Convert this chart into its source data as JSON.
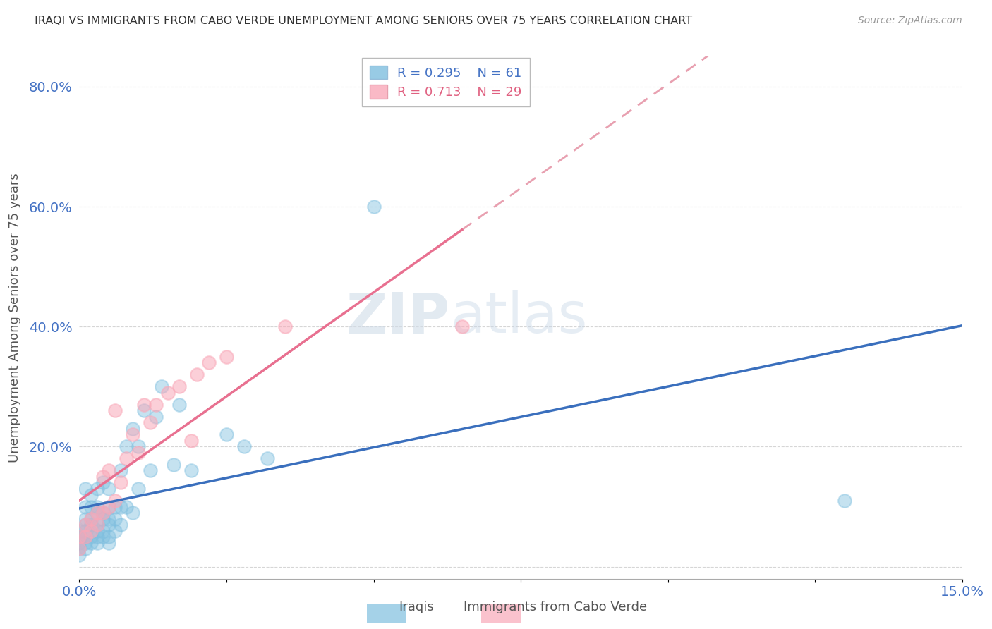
{
  "title": "IRAQI VS IMMIGRANTS FROM CABO VERDE UNEMPLOYMENT AMONG SENIORS OVER 75 YEARS CORRELATION CHART",
  "source": "Source: ZipAtlas.com",
  "ylabel": "Unemployment Among Seniors over 75 years",
  "xlim": [
    0.0,
    0.15
  ],
  "ylim": [
    -0.02,
    0.85
  ],
  "xticks": [
    0.0,
    0.025,
    0.05,
    0.075,
    0.1,
    0.125,
    0.15
  ],
  "xticklabels": [
    "0.0%",
    "",
    "",
    "",
    "",
    "",
    "15.0%"
  ],
  "yticks": [
    0.0,
    0.2,
    0.4,
    0.6,
    0.8
  ],
  "yticklabels": [
    "",
    "20.0%",
    "40.0%",
    "60.0%",
    "80.0%"
  ],
  "iraqis_R": 0.295,
  "iraqis_N": 61,
  "cabo_verde_R": 0.713,
  "cabo_verde_N": 29,
  "iraqis_color": "#7fbfdf",
  "cabo_verde_color": "#f9a8b8",
  "iraqis_line_color": "#3a6fbd",
  "cabo_verde_line_color": "#e87090",
  "cabo_verde_dash_color": "#e8a0b0",
  "background_color": "#ffffff",
  "watermark_zip": "ZIP",
  "watermark_atlas": "atlas",
  "iraqis_x": [
    0.0,
    0.0,
    0.0,
    0.0,
    0.0,
    0.001,
    0.001,
    0.001,
    0.001,
    0.001,
    0.001,
    0.001,
    0.001,
    0.002,
    0.002,
    0.002,
    0.002,
    0.002,
    0.002,
    0.003,
    0.003,
    0.003,
    0.003,
    0.003,
    0.003,
    0.003,
    0.004,
    0.004,
    0.004,
    0.004,
    0.004,
    0.005,
    0.005,
    0.005,
    0.005,
    0.005,
    0.005,
    0.006,
    0.006,
    0.006,
    0.007,
    0.007,
    0.007,
    0.008,
    0.008,
    0.009,
    0.009,
    0.01,
    0.01,
    0.011,
    0.012,
    0.013,
    0.014,
    0.016,
    0.017,
    0.019,
    0.025,
    0.028,
    0.032,
    0.05,
    0.13
  ],
  "iraqis_y": [
    0.02,
    0.03,
    0.04,
    0.05,
    0.06,
    0.03,
    0.04,
    0.05,
    0.06,
    0.07,
    0.08,
    0.1,
    0.13,
    0.04,
    0.05,
    0.07,
    0.08,
    0.1,
    0.12,
    0.04,
    0.05,
    0.06,
    0.07,
    0.09,
    0.1,
    0.13,
    0.05,
    0.06,
    0.08,
    0.09,
    0.14,
    0.04,
    0.05,
    0.07,
    0.08,
    0.1,
    0.13,
    0.06,
    0.08,
    0.1,
    0.07,
    0.1,
    0.16,
    0.1,
    0.2,
    0.09,
    0.23,
    0.13,
    0.2,
    0.26,
    0.16,
    0.25,
    0.3,
    0.17,
    0.27,
    0.16,
    0.22,
    0.2,
    0.18,
    0.6,
    0.11
  ],
  "cabo_verde_x": [
    0.0,
    0.0,
    0.001,
    0.001,
    0.002,
    0.002,
    0.003,
    0.003,
    0.004,
    0.004,
    0.005,
    0.005,
    0.006,
    0.006,
    0.007,
    0.008,
    0.009,
    0.01,
    0.011,
    0.012,
    0.013,
    0.015,
    0.017,
    0.019,
    0.02,
    0.022,
    0.025,
    0.035,
    0.065
  ],
  "cabo_verde_y": [
    0.03,
    0.05,
    0.05,
    0.07,
    0.06,
    0.08,
    0.07,
    0.09,
    0.09,
    0.15,
    0.1,
    0.16,
    0.11,
    0.26,
    0.14,
    0.18,
    0.22,
    0.19,
    0.27,
    0.24,
    0.27,
    0.29,
    0.3,
    0.21,
    0.32,
    0.34,
    0.35,
    0.4,
    0.4
  ]
}
